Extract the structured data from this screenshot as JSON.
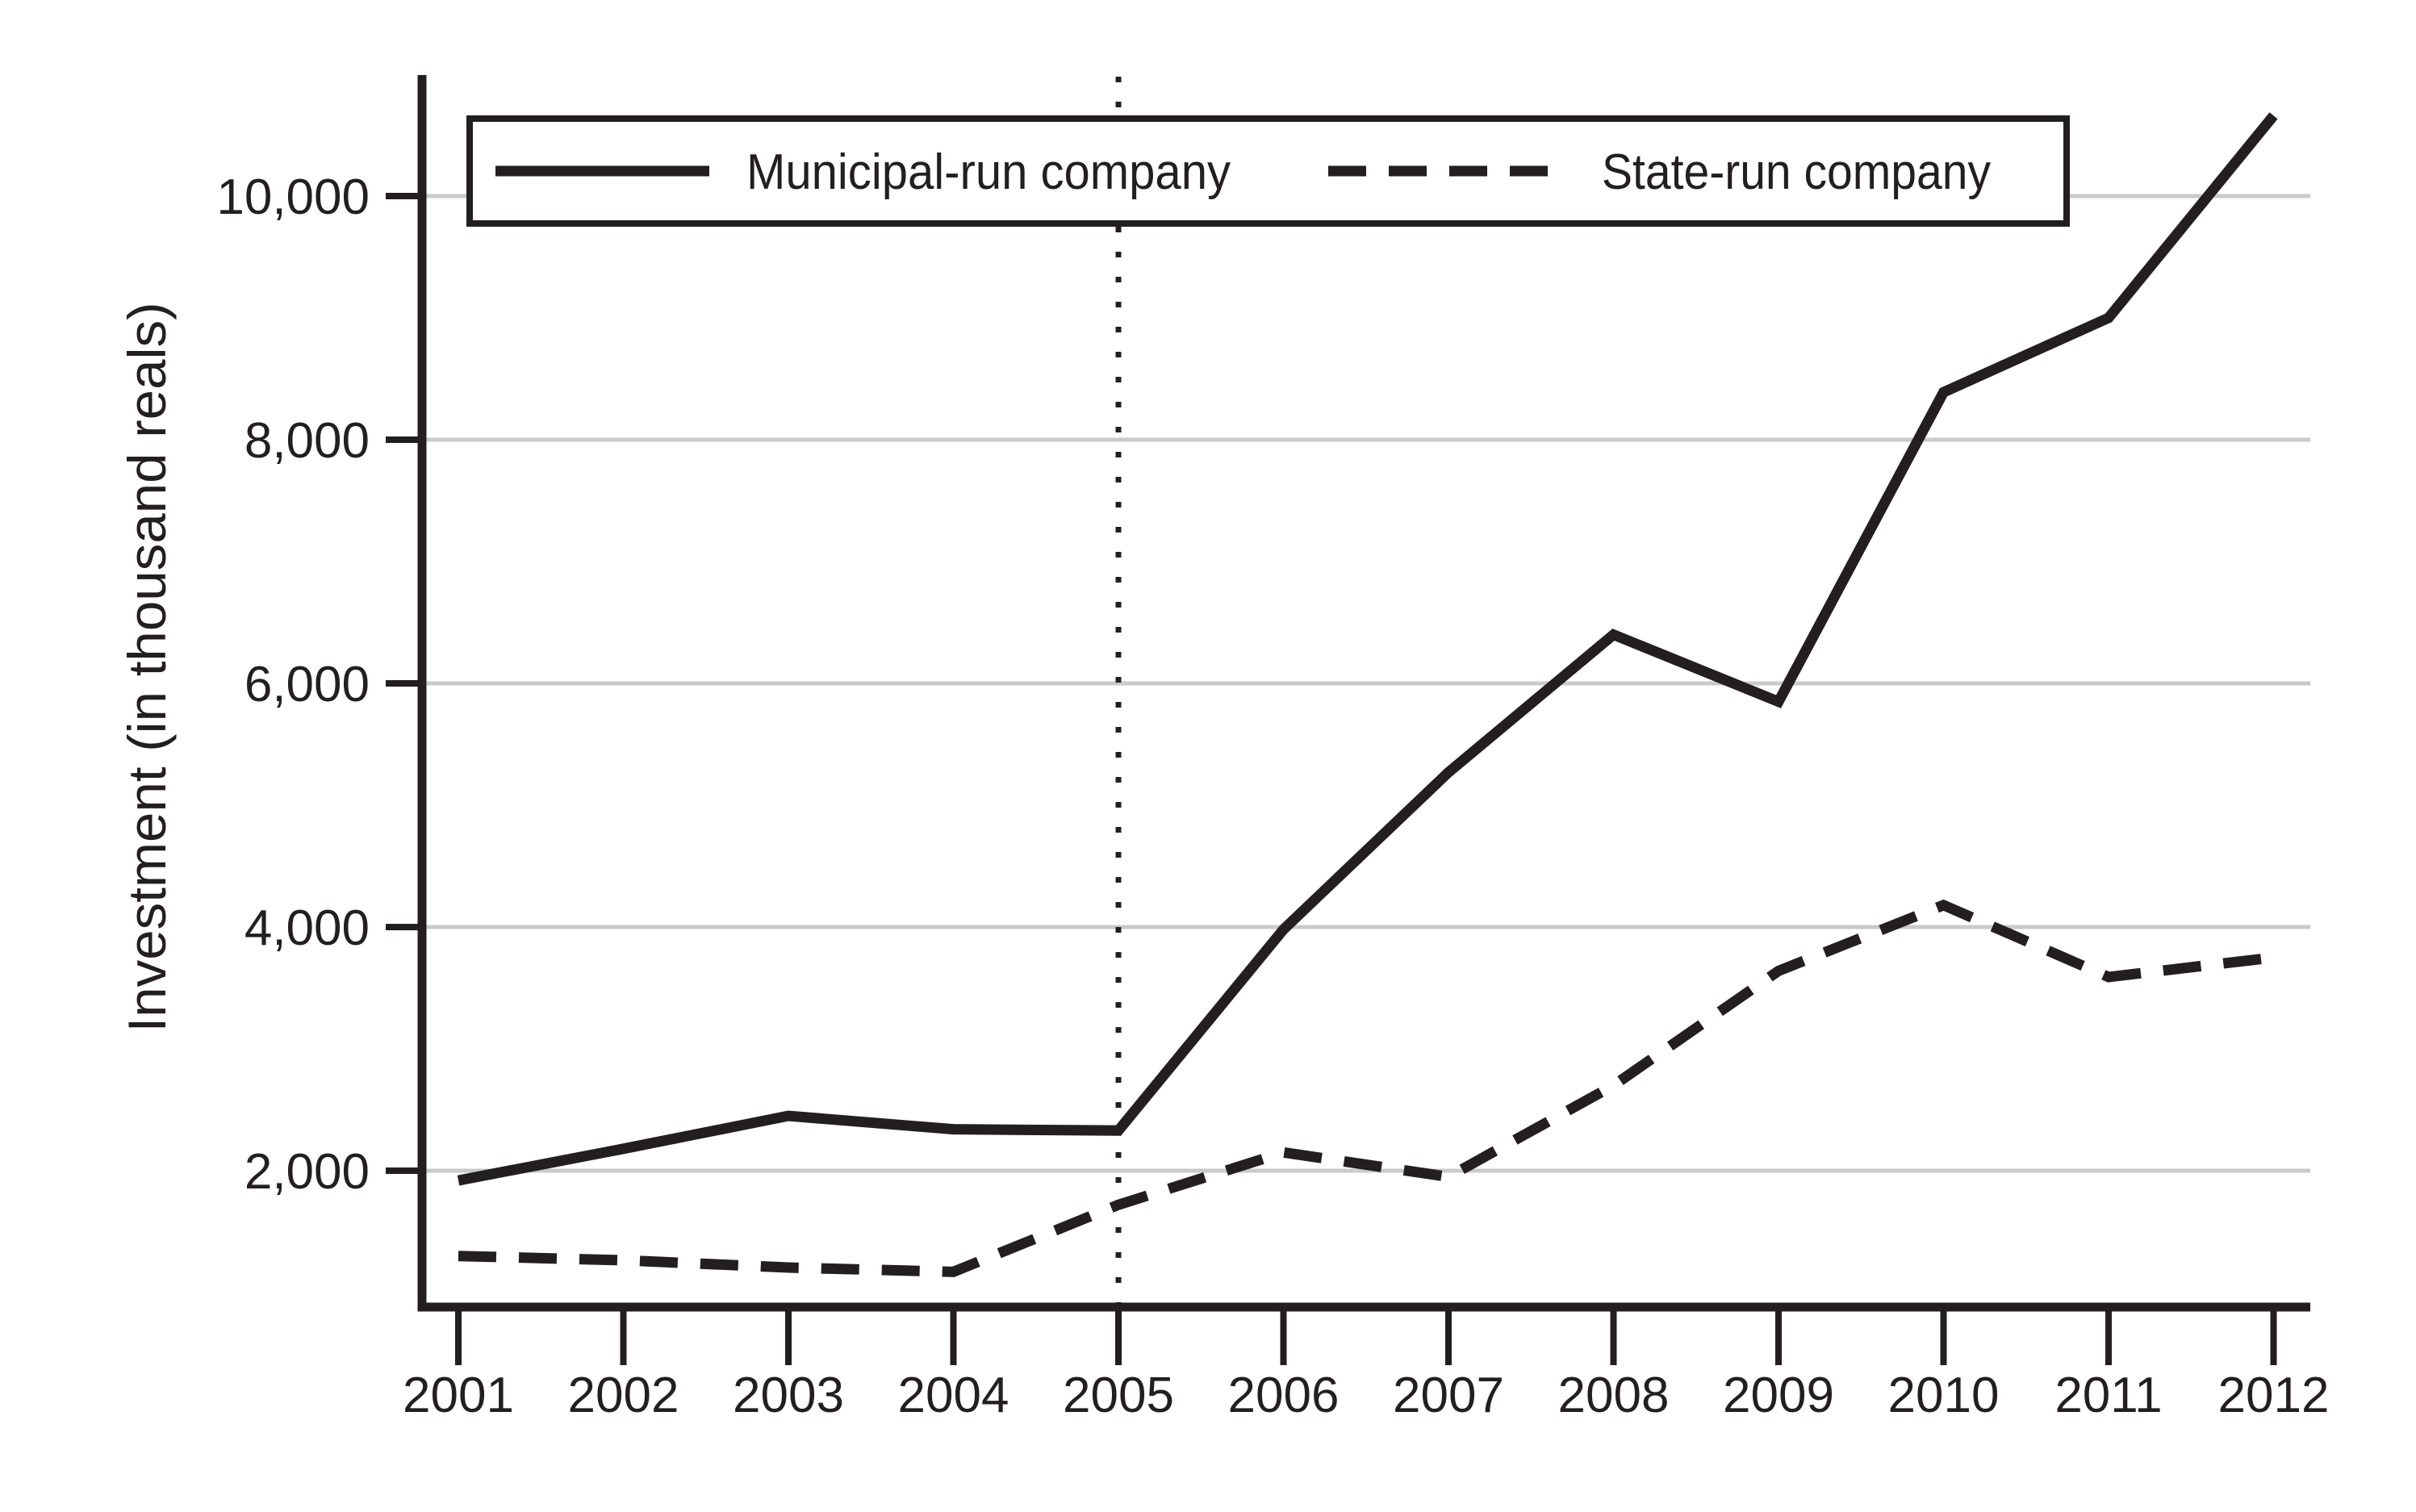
{
  "figure": {
    "background": "#ffffff",
    "ink_color": "#231f20",
    "gridline_color": "#c9cacc"
  },
  "chart_data": {
    "type": "line",
    "title": "",
    "xlabel": "",
    "ylabel": "Investment (in thousand reals)",
    "x": [
      2001,
      2002,
      2003,
      2004,
      2005,
      2006,
      2007,
      2008,
      2009,
      2010,
      2011,
      2012
    ],
    "x_tick_labels": [
      "2001",
      "2002",
      "2003",
      "2004",
      "2005",
      "2006",
      "2007",
      "2008",
      "2009",
      "2010",
      "2011",
      "2012"
    ],
    "y_ticks": [
      {
        "value": 2000,
        "label": "2,000"
      },
      {
        "value": 4000,
        "label": "4,000"
      },
      {
        "value": 6000,
        "label": "6,000"
      },
      {
        "value": 8000,
        "label": "8,000"
      },
      {
        "value": 10000,
        "label": "10,000"
      }
    ],
    "ylim": [
      880,
      10980
    ],
    "grid": "horizontal",
    "legend_position": "top",
    "reference_line": {
      "x": 2005,
      "style": "dotted-vertical"
    },
    "series": [
      {
        "name": "Municipal-run company",
        "line_style": "solid",
        "values": [
          1920,
          2180,
          2450,
          2340,
          2330,
          3980,
          5270,
          6400,
          5850,
          8390,
          9000,
          10660
        ]
      },
      {
        "name": "State-run company",
        "line_style": "dashed",
        "values": [
          1300,
          1265,
          1205,
          1170,
          1720,
          2150,
          1950,
          2700,
          3640,
          4180,
          3590,
          3750
        ]
      }
    ]
  }
}
